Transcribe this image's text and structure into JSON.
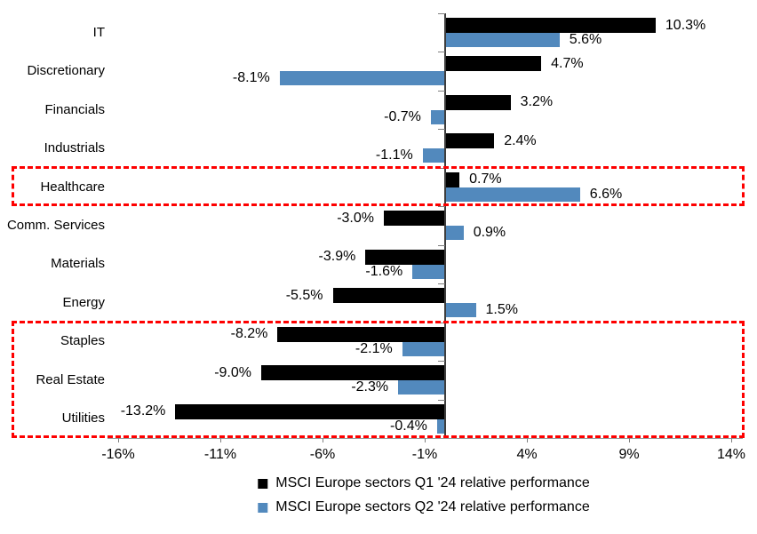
{
  "chart_data": {
    "type": "bar",
    "orientation": "horizontal",
    "title": "",
    "xlabel": "",
    "ylabel": "",
    "grid": false,
    "legend_position": "bottom",
    "categories": [
      "IT",
      "Discretionary",
      "Financials",
      "Industrials",
      "Healthcare",
      "Comm. Services",
      "Materials",
      "Energy",
      "Staples",
      "Real Estate",
      "Utilities"
    ],
    "series": [
      {
        "name": "MSCI Europe sectors Q1 '24 relative performance",
        "color": "#000000",
        "values": [
          10.3,
          4.7,
          3.2,
          2.4,
          0.7,
          -3.0,
          -3.9,
          -5.5,
          -8.2,
          -9.0,
          -13.2
        ],
        "labels": [
          "10.3%",
          "4.7%",
          "3.2%",
          "2.4%",
          "0.7%",
          "-3.0%",
          "-3.9%",
          "-5.5%",
          "-8.2%",
          "-9.0%",
          "-13.2%"
        ]
      },
      {
        "name": "MSCI Europe sectors Q2 '24 relative performance",
        "color": "#5289BD",
        "values": [
          5.6,
          -8.1,
          -0.7,
          -1.1,
          6.6,
          0.9,
          -1.6,
          1.5,
          -2.1,
          -2.3,
          -0.4
        ],
        "labels": [
          "5.6%",
          "-8.1%",
          "-0.7%",
          "-1.1%",
          "6.6%",
          "0.9%",
          "-1.6%",
          "1.5%",
          "-2.1%",
          "-2.3%",
          "-0.4%"
        ]
      }
    ],
    "x_axis": {
      "ticks": [
        -16,
        -11,
        -6,
        -1,
        4,
        9,
        14
      ],
      "tick_labels": [
        "-16%",
        "-11%",
        "-6%",
        "-1%",
        "4%",
        "9%",
        "14%"
      ],
      "xlim": [
        -16.5,
        14.6
      ]
    },
    "annotations": {
      "highlight_color": "#FE0000",
      "boxes": [
        {
          "name": "healthcare-highlight",
          "row_start": 4,
          "row_end": 4,
          "rows": [
            "Healthcare"
          ]
        },
        {
          "name": "defensives-highlight",
          "row_start": 8,
          "row_end": 10,
          "rows": [
            "Staples",
            "Real Estate",
            "Utilities"
          ]
        }
      ]
    }
  }
}
